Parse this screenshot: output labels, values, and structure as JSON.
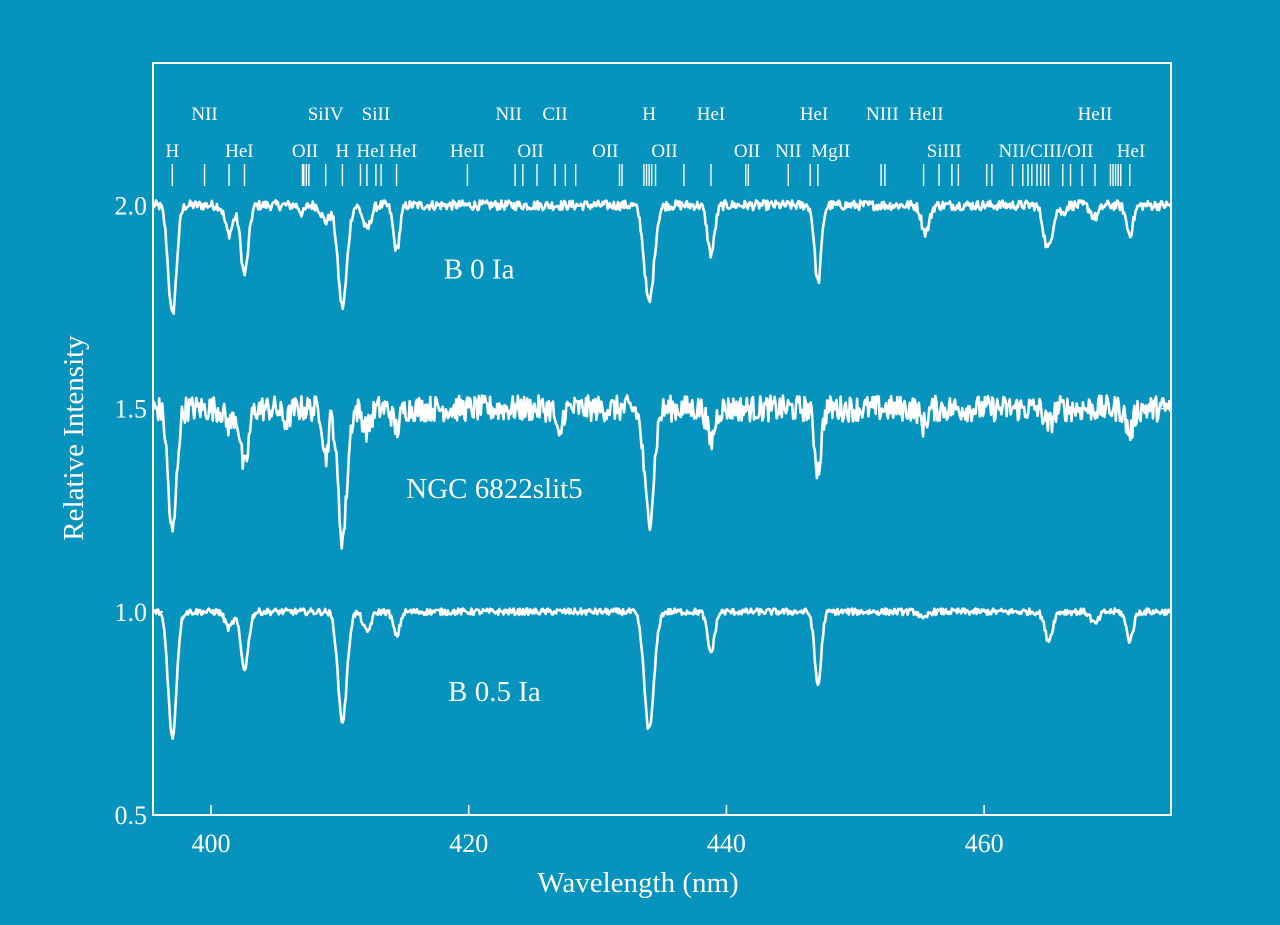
{
  "chart_data": {
    "type": "line",
    "xlabel": "Wavelength (nm)",
    "ylabel": "Relative Intensity",
    "xlim": [
      395.5,
      474.5
    ],
    "ylim": [
      0.5,
      2.35
    ],
    "xticks": [
      400,
      420,
      440,
      460
    ],
    "yticks": [
      0.5,
      1.0,
      1.5,
      2.0
    ],
    "ytick_labels": [
      "0.5",
      "1.0",
      "1.5",
      "2.0"
    ],
    "grid": false,
    "legend": "none",
    "series": [
      {
        "label": "B 0 Ia",
        "label_pos": [
          420.8,
          1.82
        ],
        "continuum": 2.0,
        "noise": 0.012,
        "lines": [
          [
            397.0,
            0.27,
            0.32
          ],
          [
            401.4,
            0.07,
            0.3
          ],
          [
            402.6,
            0.17,
            0.3
          ],
          [
            407.1,
            0.02,
            0.2
          ],
          [
            408.9,
            0.04,
            0.3
          ],
          [
            410.2,
            0.25,
            0.35
          ],
          [
            412.1,
            0.06,
            0.3
          ],
          [
            414.4,
            0.11,
            0.25
          ],
          [
            434.0,
            0.24,
            0.38
          ],
          [
            438.8,
            0.12,
            0.28
          ],
          [
            447.1,
            0.19,
            0.26
          ],
          [
            455.3,
            0.04,
            0.25
          ],
          [
            455.6,
            0.04,
            0.25
          ],
          [
            464.8,
            0.06,
            0.3
          ],
          [
            465.1,
            0.06,
            0.3
          ],
          [
            466.1,
            0.02,
            0.2
          ],
          [
            468.6,
            0.03,
            0.3
          ],
          [
            471.3,
            0.07,
            0.27
          ]
        ]
      },
      {
        "label": "NGC 6822slit5",
        "label_pos": [
          422.0,
          1.28
        ],
        "continuum": 1.5,
        "noise": 0.032,
        "lines": [
          [
            397.0,
            0.31,
            0.32
          ],
          [
            401.4,
            0.04,
            0.3
          ],
          [
            402.6,
            0.15,
            0.3
          ],
          [
            405.8,
            0.03,
            0.3
          ],
          [
            408.9,
            0.12,
            0.2
          ],
          [
            410.2,
            0.32,
            0.35
          ],
          [
            412.1,
            0.05,
            0.3
          ],
          [
            414.4,
            0.05,
            0.25
          ],
          [
            427.0,
            0.08,
            0.2
          ],
          [
            434.0,
            0.27,
            0.38
          ],
          [
            438.8,
            0.08,
            0.28
          ],
          [
            447.1,
            0.15,
            0.26
          ],
          [
            455.3,
            0.04,
            0.25
          ],
          [
            465.0,
            0.04,
            0.3
          ],
          [
            471.3,
            0.06,
            0.27
          ]
        ]
      },
      {
        "label": "B 0.5 Ia",
        "label_pos": [
          422.0,
          0.78
        ],
        "continuum": 1.0,
        "noise": 0.008,
        "lines": [
          [
            397.0,
            0.31,
            0.32
          ],
          [
            401.4,
            0.04,
            0.3
          ],
          [
            402.6,
            0.14,
            0.3
          ],
          [
            410.2,
            0.27,
            0.35
          ],
          [
            412.1,
            0.05,
            0.3
          ],
          [
            414.4,
            0.06,
            0.25
          ],
          [
            434.0,
            0.29,
            0.38
          ],
          [
            438.8,
            0.1,
            0.28
          ],
          [
            447.1,
            0.18,
            0.26
          ],
          [
            455.3,
            0.02,
            0.25
          ],
          [
            465.0,
            0.07,
            0.3
          ],
          [
            468.6,
            0.03,
            0.3
          ],
          [
            471.3,
            0.07,
            0.27
          ]
        ]
      }
    ],
    "line_markers": [
      397.0,
      399.5,
      401.4,
      402.6,
      407.1,
      407.2,
      407.4,
      407.6,
      408.9,
      410.2,
      411.6,
      412.1,
      412.8,
      413.2,
      414.4,
      419.9,
      423.6,
      424.2,
      425.3,
      426.7,
      427.5,
      428.3,
      431.7,
      431.9,
      433.6,
      433.8,
      434.0,
      434.2,
      434.5,
      436.7,
      438.8,
      441.5,
      441.7,
      444.8,
      446.5,
      447.1,
      452.0,
      452.3,
      455.3,
      456.5,
      457.5,
      458.0,
      460.2,
      460.6,
      462.2,
      463.0,
      463.4,
      463.7,
      464.1,
      464.4,
      464.7,
      465.0,
      466.1,
      466.7,
      467.6,
      468.6,
      469.8,
      470.0,
      470.2,
      470.4,
      470.6,
      471.3
    ],
    "line_ids": [
      {
        "text": "NII",
        "x": 399.5,
        "row": 0
      },
      {
        "text": "SiIV",
        "x": 408.9,
        "row": 0
      },
      {
        "text": "SiII",
        "x": 412.8,
        "row": 0
      },
      {
        "text": "NII",
        "x": 423.1,
        "row": 0
      },
      {
        "text": "CII",
        "x": 426.7,
        "row": 0
      },
      {
        "text": "H",
        "x": 434.0,
        "row": 0
      },
      {
        "text": "HeI",
        "x": 438.8,
        "row": 0
      },
      {
        "text": "HeI",
        "x": 446.8,
        "row": 0
      },
      {
        "text": "NIII",
        "x": 452.1,
        "row": 0
      },
      {
        "text": "HeII",
        "x": 455.5,
        "row": 0
      },
      {
        "text": "HeII",
        "x": 468.6,
        "row": 0
      },
      {
        "text": "H",
        "x": 397.0,
        "row": 1
      },
      {
        "text": "HeI",
        "x": 402.2,
        "row": 1
      },
      {
        "text": "OII",
        "x": 407.3,
        "row": 1
      },
      {
        "text": "H",
        "x": 410.2,
        "row": 1
      },
      {
        "text": "HeI",
        "x": 412.4,
        "row": 1
      },
      {
        "text": "HeI",
        "x": 414.9,
        "row": 1
      },
      {
        "text": "HeII",
        "x": 419.9,
        "row": 1
      },
      {
        "text": "OII",
        "x": 424.8,
        "row": 1
      },
      {
        "text": "OII",
        "x": 430.6,
        "row": 1
      },
      {
        "text": "OII",
        "x": 435.2,
        "row": 1
      },
      {
        "text": "OII",
        "x": 441.6,
        "row": 1
      },
      {
        "text": "NII",
        "x": 444.8,
        "row": 1
      },
      {
        "text": "MgII",
        "x": 448.1,
        "row": 1
      },
      {
        "text": "SiIII",
        "x": 456.9,
        "row": 1
      },
      {
        "text": "NII/CIII/OII",
        "x": 464.8,
        "row": 1
      },
      {
        "text": "HeI",
        "x": 471.4,
        "row": 1
      }
    ]
  }
}
